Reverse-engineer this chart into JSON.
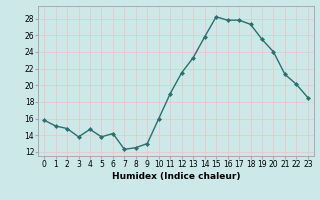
{
  "x": [
    0,
    1,
    2,
    3,
    4,
    5,
    6,
    7,
    8,
    9,
    10,
    11,
    12,
    13,
    14,
    15,
    16,
    17,
    18,
    19,
    20,
    21,
    22,
    23
  ],
  "y": [
    15.8,
    15.1,
    14.8,
    13.8,
    14.7,
    13.8,
    14.2,
    12.3,
    12.5,
    13.0,
    16.0,
    19.0,
    21.5,
    23.3,
    25.8,
    28.2,
    27.8,
    27.8,
    27.3,
    25.5,
    24.0,
    21.3,
    20.1,
    18.5
  ],
  "line_color": "#2d6e6e",
  "marker": "D",
  "marker_size": 2.0,
  "bg_color": "#cce8e8",
  "grid_color": "#e8c8c8",
  "xlabel": "Humidex (Indice chaleur)",
  "ylabel_ticks": [
    12,
    14,
    16,
    18,
    20,
    22,
    24,
    26,
    28
  ],
  "xlim": [
    -0.5,
    23.5
  ],
  "ylim": [
    11.5,
    29.5
  ],
  "xtick_labels": [
    "0",
    "1",
    "2",
    "3",
    "4",
    "5",
    "6",
    "7",
    "8",
    "9",
    "10",
    "11",
    "12",
    "13",
    "14",
    "15",
    "16",
    "17",
    "18",
    "19",
    "20",
    "21",
    "22",
    "23"
  ],
  "xlabel_fontsize": 6.5,
  "tick_fontsize": 5.5,
  "line_width": 1.0
}
